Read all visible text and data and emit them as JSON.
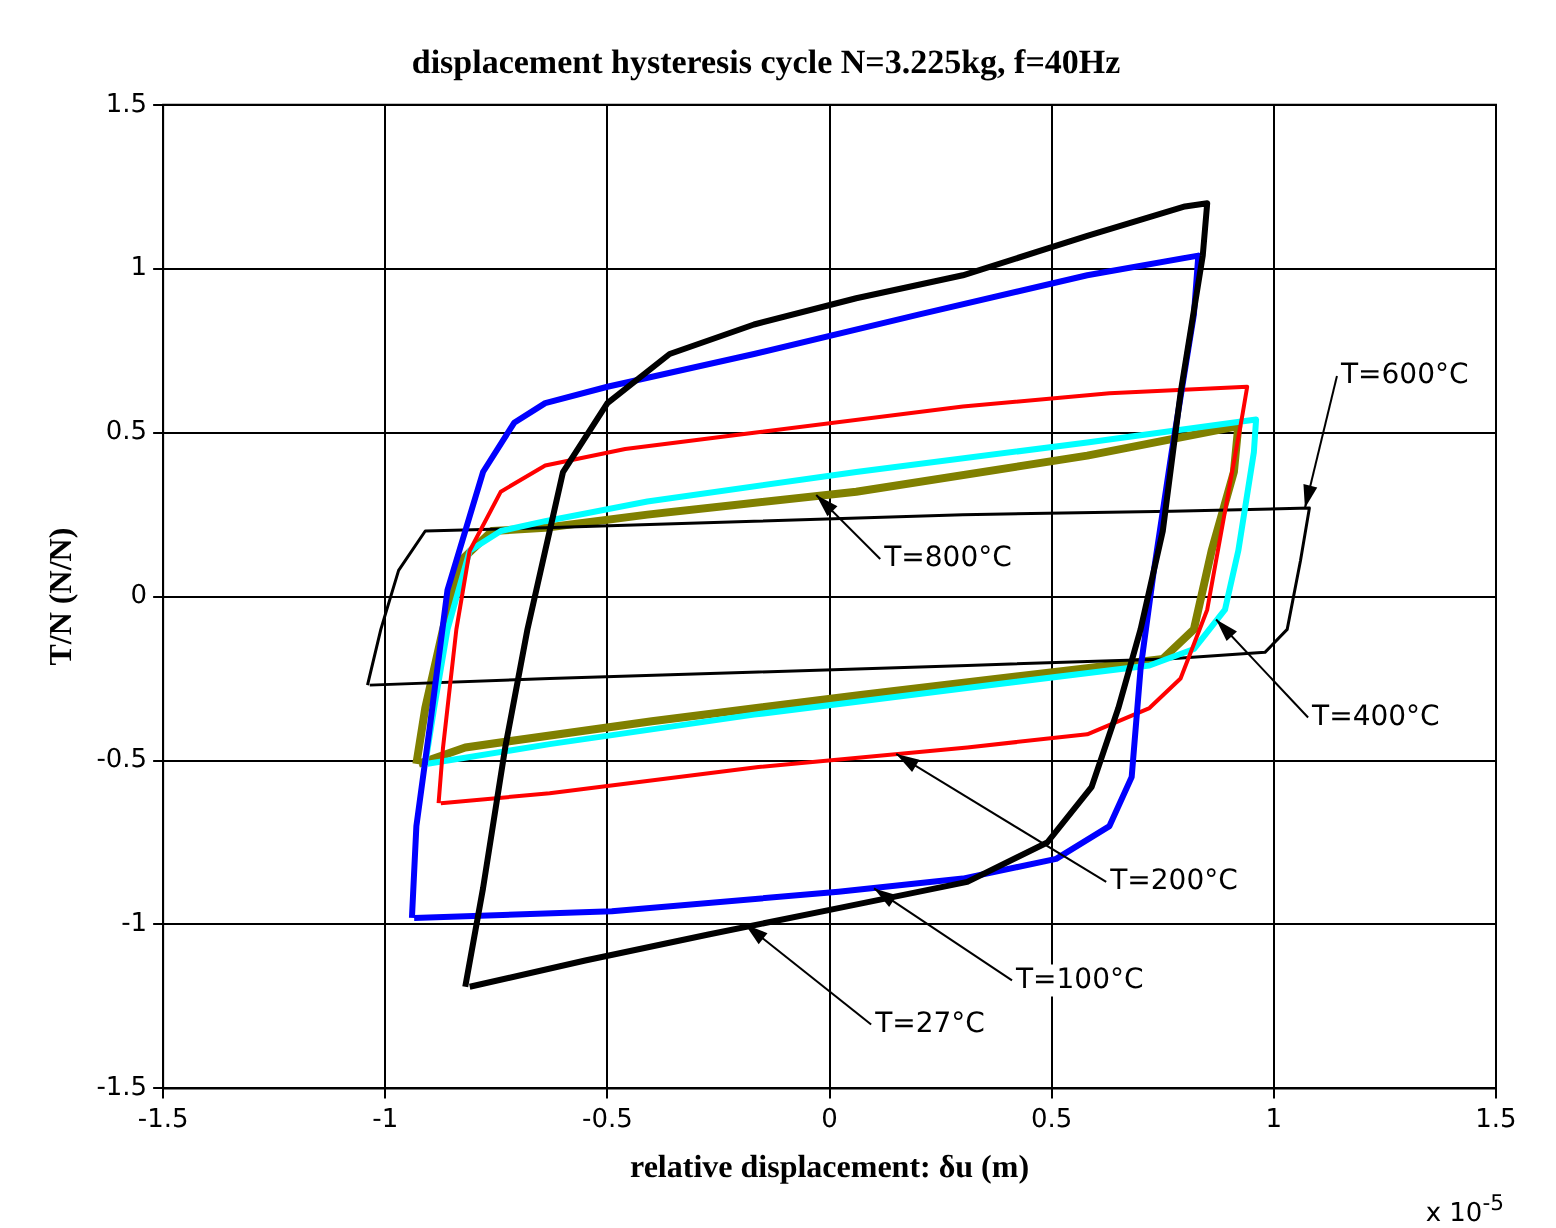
{
  "chart_data": {
    "type": "line",
    "title": "displacement hysteresis cycle N=3.225kg, f=40Hz",
    "xlabel": "relative displacement: δu (m)",
    "ylabel": "T/N (N/N)",
    "xlim": [
      -1.5,
      1.5
    ],
    "ylim": [
      -1.5,
      1.5
    ],
    "xticks": [
      -1.5,
      -1,
      -0.5,
      0,
      0.5,
      1,
      1.5
    ],
    "yticks": [
      -1.5,
      -1,
      -0.5,
      0,
      0.5,
      1,
      1.5
    ],
    "grid": true,
    "series": [
      {
        "color": "#000000",
        "x": [
          -0.82,
          -0.78,
          -0.73,
          -0.68,
          -0.64,
          -0.6,
          -0.5,
          -0.36,
          -0.17,
          0.06,
          0.3,
          0.58,
          0.8,
          0.85,
          0.84,
          0.79,
          0.75,
          0.7,
          0.65,
          0.59,
          0.49,
          0.31,
          0.02,
          -0.27,
          -0.55,
          -0.81
        ],
        "values": [
          -1.19,
          -0.89,
          -0.46,
          -0.1,
          0.14,
          0.38,
          0.59,
          0.74,
          0.83,
          0.91,
          0.98,
          1.1,
          1.19,
          1.2,
          1.04,
          0.62,
          0.2,
          -0.1,
          -0.34,
          -0.58,
          -0.75,
          -0.87,
          -0.95,
          -1.03,
          -1.11,
          -1.19
        ]
      },
      {
        "color": "#0000ff",
        "x": [
          -0.94,
          -0.93,
          -0.9,
          -0.86,
          -0.78,
          -0.71,
          -0.64,
          -0.5,
          -0.17,
          0.2,
          0.58,
          0.83,
          0.82,
          0.77,
          0.73,
          0.7,
          0.68,
          0.63,
          0.51,
          0.3,
          0.02,
          -0.49,
          -0.935
        ],
        "values": [
          -0.98,
          -0.7,
          -0.4,
          0.02,
          0.38,
          0.53,
          0.59,
          0.64,
          0.74,
          0.86,
          0.98,
          1.04,
          0.86,
          0.44,
          0.08,
          -0.22,
          -0.55,
          -0.7,
          -0.8,
          -0.86,
          -0.9,
          -0.96,
          -0.98
        ]
      },
      {
        "color": "#ff0000",
        "x": [
          -0.88,
          -0.87,
          -0.84,
          -0.81,
          -0.74,
          -0.64,
          -0.46,
          -0.17,
          0.3,
          0.63,
          0.94,
          0.93,
          0.89,
          0.85,
          0.79,
          0.72,
          0.58,
          0.31,
          -0.16,
          -0.63,
          -0.875
        ],
        "values": [
          -0.63,
          -0.46,
          -0.1,
          0.14,
          0.32,
          0.4,
          0.45,
          0.5,
          0.58,
          0.62,
          0.64,
          0.56,
          0.26,
          -0.04,
          -0.25,
          -0.34,
          -0.42,
          -0.46,
          -0.52,
          -0.6,
          -0.63
        ]
      },
      {
        "color": "#00ffff",
        "x": [
          -0.91,
          -0.89,
          -0.86,
          -0.81,
          -0.74,
          -0.64,
          -0.41,
          0.06,
          0.58,
          0.96,
          0.955,
          0.92,
          0.89,
          0.82,
          0.72,
          0.3,
          -0.17,
          -0.63,
          -0.905
        ],
        "values": [
          -0.51,
          -0.34,
          -0.1,
          0.14,
          0.2,
          0.23,
          0.29,
          0.38,
          0.47,
          0.54,
          0.44,
          0.14,
          -0.04,
          -0.16,
          -0.21,
          -0.28,
          -0.36,
          -0.45,
          -0.51
        ]
      },
      {
        "color": "#000000",
        "x": [
          -1.04,
          -1.01,
          -0.97,
          -0.91,
          -0.64,
          -0.17,
          0.3,
          0.77,
          1.08,
          1.06,
          1.03,
          0.98,
          0.76,
          0.31,
          -0.16,
          -0.63,
          -1.035
        ],
        "values": [
          -0.27,
          -0.1,
          0.08,
          0.2,
          0.21,
          0.23,
          0.25,
          0.26,
          0.27,
          0.11,
          -0.1,
          -0.17,
          -0.19,
          -0.21,
          -0.23,
          -0.25,
          -0.27
        ]
      },
      {
        "color": "#808000",
        "x": [
          -0.93,
          -0.91,
          -0.87,
          -0.83,
          -0.76,
          -0.64,
          -0.41,
          0.06,
          0.58,
          0.92,
          0.91,
          0.86,
          0.82,
          0.75,
          0.57,
          0.07,
          -0.4,
          -0.82,
          -0.925
        ],
        "values": [
          -0.51,
          -0.34,
          -0.1,
          0.11,
          0.2,
          0.21,
          0.25,
          0.32,
          0.43,
          0.52,
          0.38,
          0.14,
          -0.1,
          -0.19,
          -0.22,
          -0.3,
          -0.38,
          -0.46,
          -0.51
        ]
      }
    ],
    "annotations": [
      {
        "text": "T=27°C",
        "x": -0.19,
        "y": -1.0
      },
      {
        "text": "T=100°C",
        "x": 0.1,
        "y": -0.89
      },
      {
        "text": "T=200°C",
        "x": 0.15,
        "y": -0.48
      },
      {
        "text": "T=400°C",
        "x": 0.87,
        "y": -0.07
      },
      {
        "text": "T=600°C",
        "x": 1.07,
        "y": 0.27
      },
      {
        "text": "T=800°C",
        "x": -0.03,
        "y": 0.31
      },
      "x 10$^{-5}$"
    ]
  }
}
